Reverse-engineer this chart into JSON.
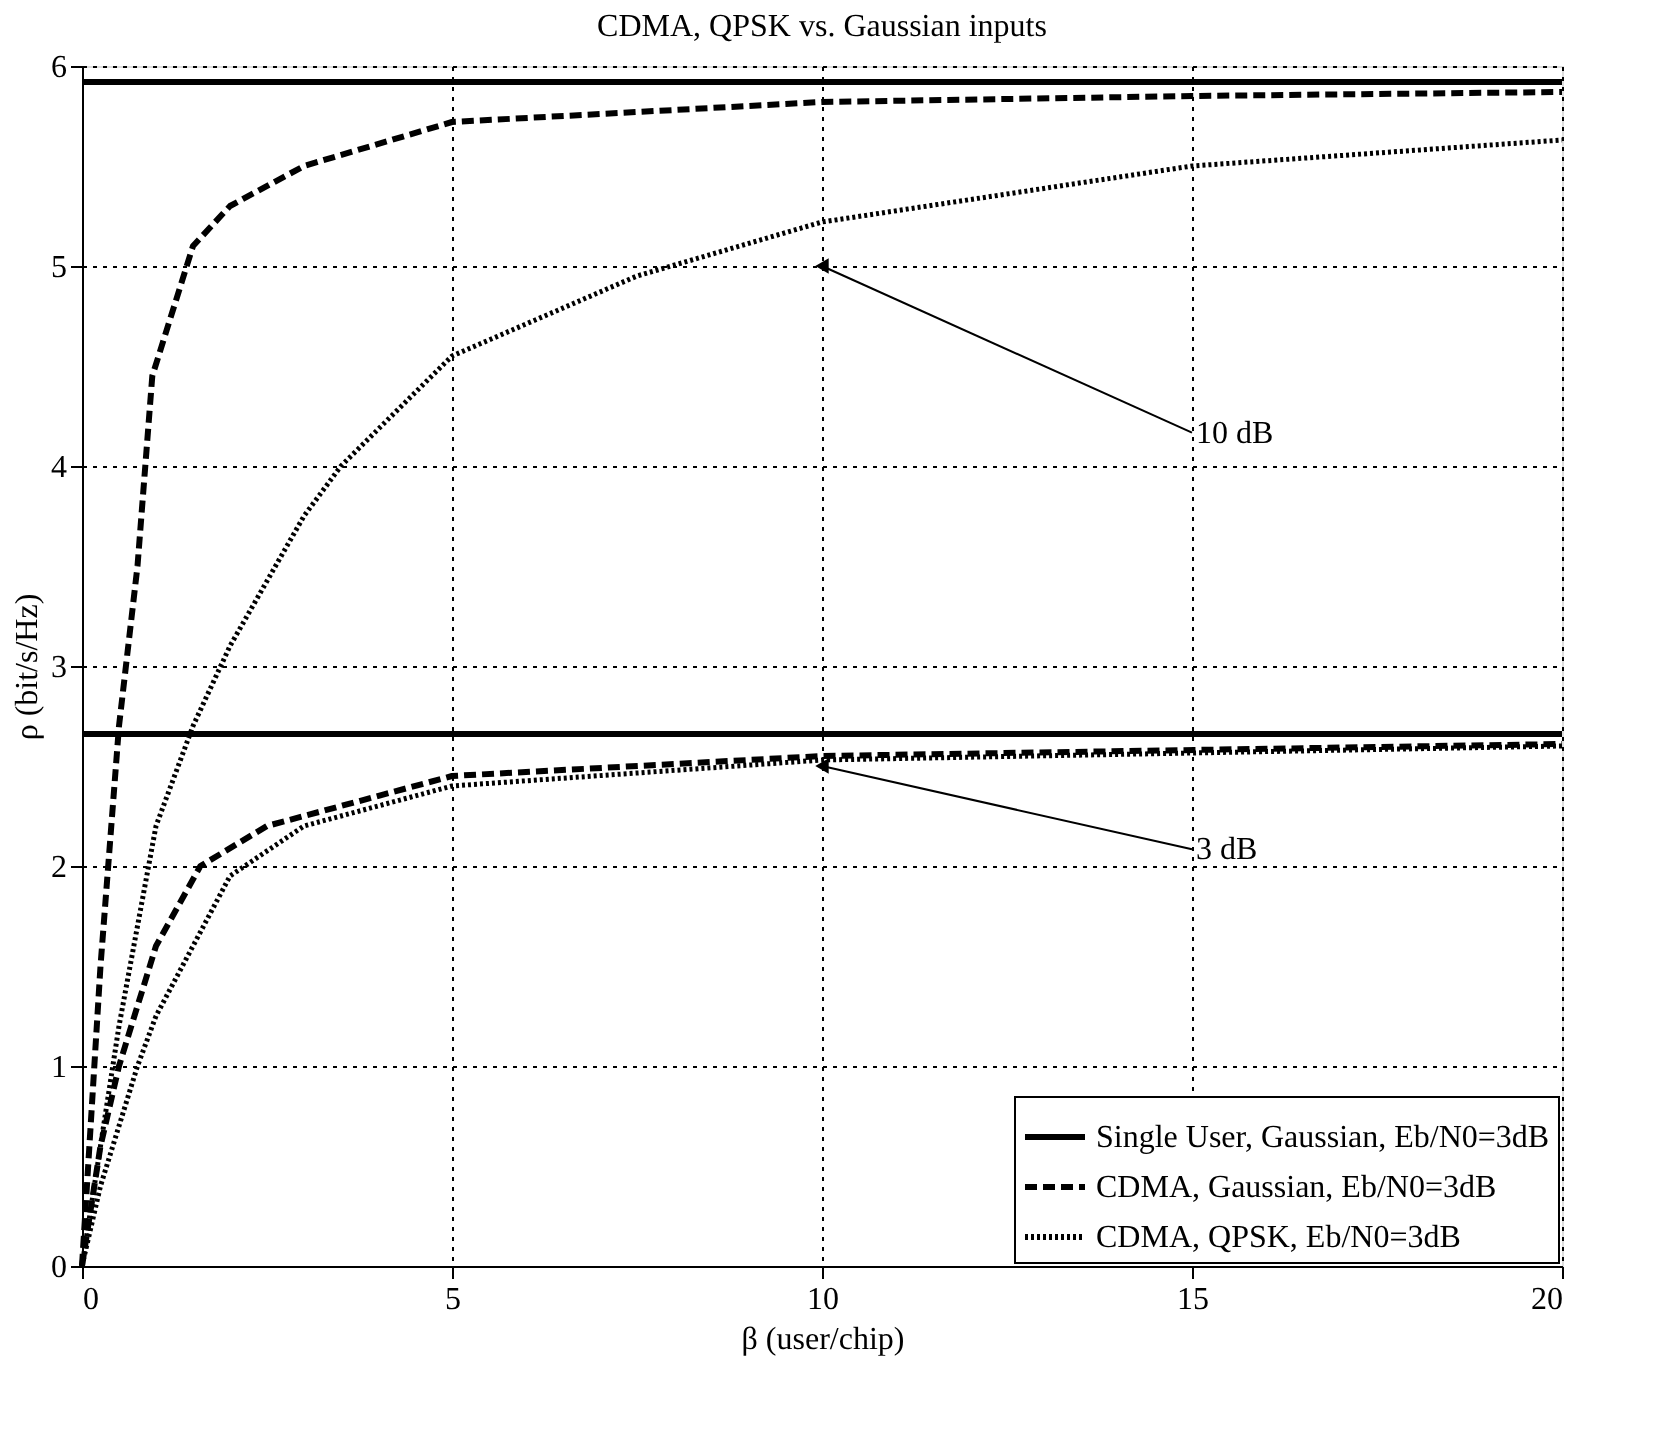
{
  "chart_data": {
    "type": "line",
    "title": "CDMA, QPSK vs. Gaussian inputs",
    "xlabel": "β (user/chip)",
    "ylabel": "ρ (bit/s/Hz)",
    "xlim": [
      0,
      20
    ],
    "ylim": [
      0,
      6
    ],
    "xticks": [
      0,
      5,
      10,
      15,
      20
    ],
    "yticks": [
      0,
      1,
      2,
      3,
      4,
      5,
      6
    ],
    "grid": true,
    "legend": "bottom right",
    "series": [
      {
        "name": "Single User, Gaussian, Eb/N0=3dB",
        "color": "#000000",
        "line_style": "solid",
        "x": [
          0,
          20
        ],
        "values": [
          2.66,
          2.66
        ]
      },
      {
        "name": "CDMA, Gaussian, Eb/N0=3dB",
        "color": "#000000",
        "line_style": "dashed",
        "x": [
          0,
          0.25,
          0.5,
          1,
          1.6,
          2.5,
          5,
          10,
          20
        ],
        "values": [
          0,
          0.6,
          1.0,
          1.6,
          2.0,
          2.2,
          2.45,
          2.55,
          2.61
        ]
      },
      {
        "name": "CDMA, QPSK, Eb/N0=3dB",
        "color": "#000000",
        "line_style": "dotted",
        "x": [
          0,
          0.25,
          0.75,
          1,
          2,
          3,
          5,
          10,
          20
        ],
        "values": [
          0,
          0.4,
          1.0,
          1.25,
          1.95,
          2.2,
          2.4,
          2.53,
          2.6
        ]
      },
      {
        "color": "#000000",
        "line_style": "solid",
        "x": [
          0,
          20
        ],
        "values": [
          5.92,
          5.92
        ]
      },
      {
        "color": "#000000",
        "line_style": "dashed",
        "x": [
          0,
          0.25,
          0.5,
          0.75,
          0.95,
          1.5,
          2,
          3,
          5,
          10,
          15,
          20
        ],
        "values": [
          0,
          1.5,
          2.7,
          3.5,
          4.45,
          5.1,
          5.3,
          5.5,
          5.72,
          5.82,
          5.85,
          5.87
        ]
      },
      {
        "color": "#000000",
        "line_style": "dotted",
        "x": [
          0,
          0.5,
          1,
          1.5,
          2,
          3,
          3.5,
          5,
          7.5,
          10,
          15,
          20
        ],
        "values": [
          0,
          1.2,
          2.2,
          2.7,
          3.1,
          3.75,
          4.0,
          4.55,
          4.95,
          5.22,
          5.5,
          5.63
        ]
      }
    ],
    "annotations": [
      {
        "text": "10 dB",
        "x": 10,
        "y": 5
      },
      {
        "text": "3 dB",
        "x": 10,
        "y": 2.5
      }
    ]
  }
}
